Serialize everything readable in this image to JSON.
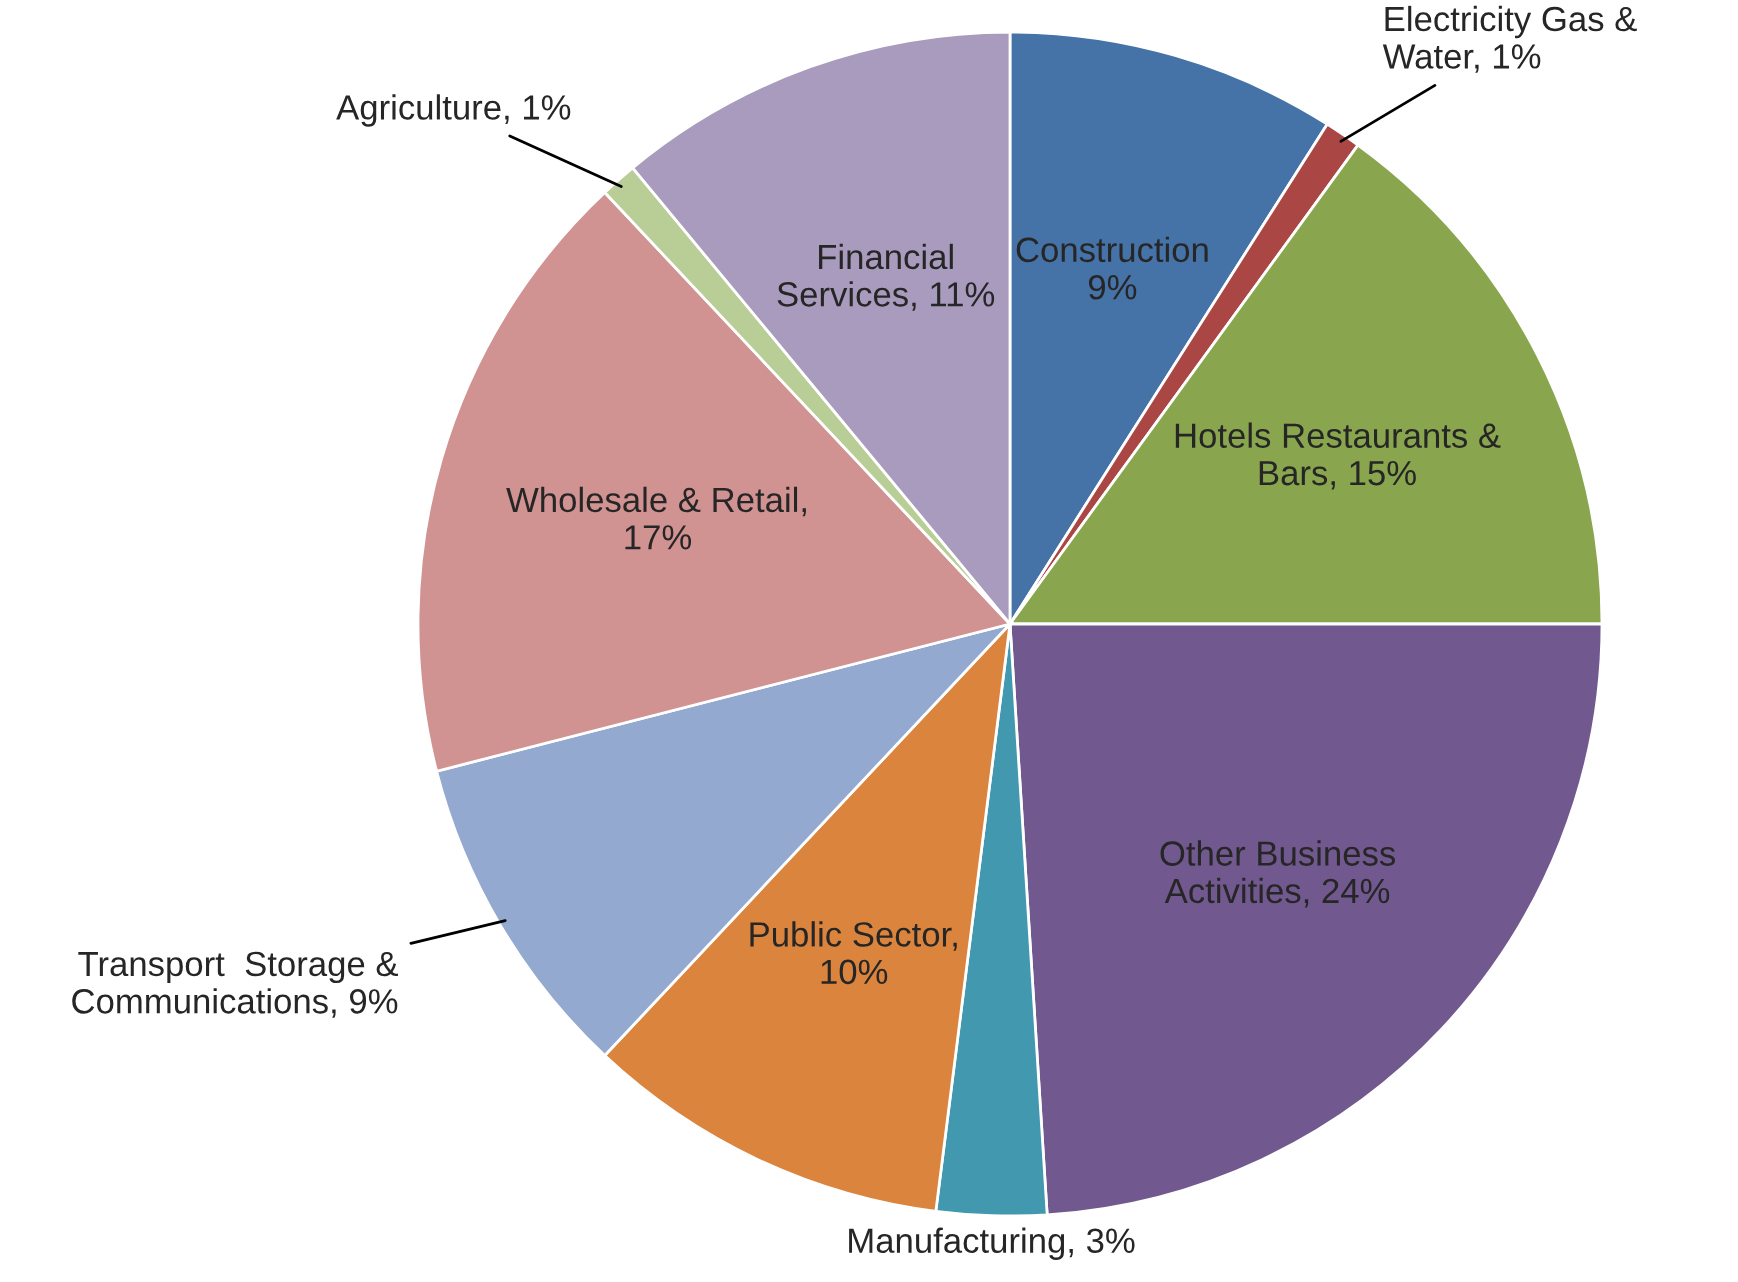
{
  "chart_data": {
    "type": "pie",
    "categories": [
      "Construction\n9%",
      "Electricity Gas &\nWater, 1%",
      "Hotels Restaurants &\nBars, 15%",
      "Other Business\nActivities, 24%",
      "Manufacturing, 3%",
      "Public Sector,\n10%",
      "Transport  Storage &\nCommunications, 9%",
      "Wholesale & Retail,\n17%",
      "Agriculture, 1%",
      "Financial\nServices, 11%"
    ],
    "values": [
      9,
      1,
      15,
      24,
      3,
      10,
      9,
      17,
      1,
      11
    ],
    "colors": [
      "#4572a7",
      "#aa4643",
      "#89a54e",
      "#71588f",
      "#4198af",
      "#db843d",
      "#93a9cf",
      "#d19392",
      "#b9cd96",
      "#a99bbd"
    ]
  }
}
